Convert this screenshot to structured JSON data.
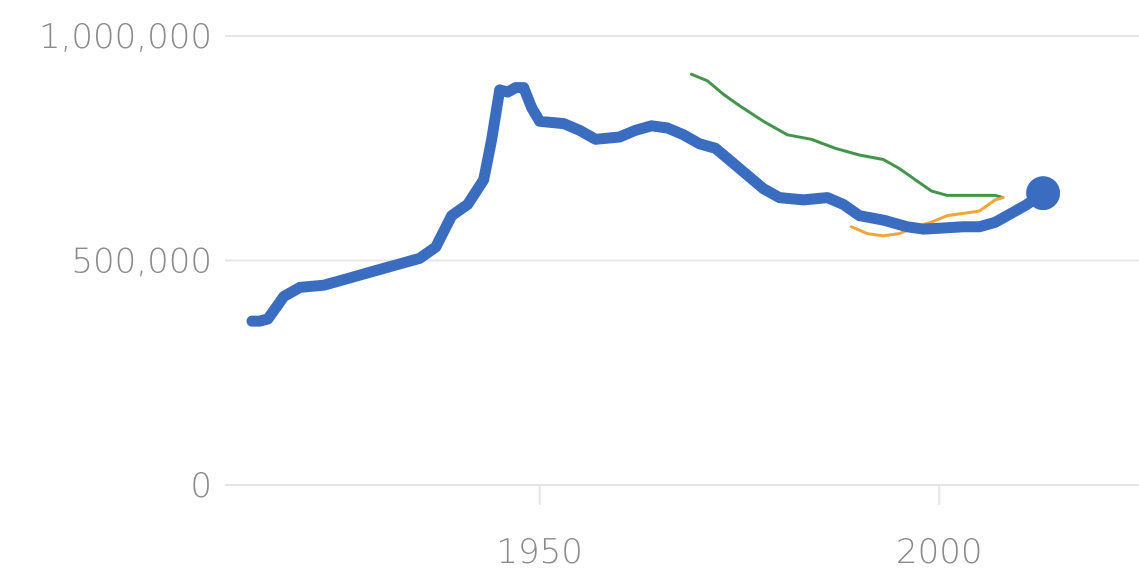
{
  "chart_data": {
    "type": "line",
    "title": "",
    "xlabel": "",
    "ylabel": "",
    "xlim": [
      1910,
      2025
    ],
    "ylim": [
      0,
      1000000
    ],
    "grid": true,
    "legend": "none",
    "y_ticks": [
      {
        "value": 0,
        "label": "0"
      },
      {
        "value": 500000,
        "label": "500,000"
      },
      {
        "value": 1000000,
        "label": "1,000,000"
      }
    ],
    "x_ticks": [
      {
        "value": 1950,
        "label": "1950"
      },
      {
        "value": 2000,
        "label": "2000"
      }
    ],
    "series": [
      {
        "color": "#3a6cc0",
        "end_marker": true,
        "points": [
          [
            1914,
            365000
          ],
          [
            1915,
            365000
          ],
          [
            1916,
            370000
          ],
          [
            1918,
            420000
          ],
          [
            1920,
            440000
          ],
          [
            1923,
            445000
          ],
          [
            1926,
            460000
          ],
          [
            1929,
            475000
          ],
          [
            1932,
            490000
          ],
          [
            1935,
            505000
          ],
          [
            1937,
            530000
          ],
          [
            1939,
            600000
          ],
          [
            1941,
            625000
          ],
          [
            1943,
            680000
          ],
          [
            1944,
            770000
          ],
          [
            1945,
            880000
          ],
          [
            1946,
            875000
          ],
          [
            1947,
            885000
          ],
          [
            1948,
            885000
          ],
          [
            1949,
            840000
          ],
          [
            1950,
            810000
          ],
          [
            1953,
            805000
          ],
          [
            1955,
            790000
          ],
          [
            1957,
            770000
          ],
          [
            1960,
            775000
          ],
          [
            1962,
            790000
          ],
          [
            1964,
            800000
          ],
          [
            1966,
            795000
          ],
          [
            1968,
            780000
          ],
          [
            1970,
            760000
          ],
          [
            1972,
            750000
          ],
          [
            1974,
            720000
          ],
          [
            1976,
            690000
          ],
          [
            1978,
            660000
          ],
          [
            1980,
            640000
          ],
          [
            1983,
            635000
          ],
          [
            1986,
            640000
          ],
          [
            1988,
            625000
          ],
          [
            1990,
            600000
          ],
          [
            1993,
            590000
          ],
          [
            1996,
            575000
          ],
          [
            1998,
            570000
          ],
          [
            2000,
            572000
          ],
          [
            2003,
            575000
          ],
          [
            2005,
            575000
          ],
          [
            2007,
            585000
          ],
          [
            2009,
            605000
          ],
          [
            2011,
            625000
          ],
          [
            2013,
            650000
          ]
        ]
      },
      {
        "color": "#45944c",
        "end_marker": false,
        "points": [
          [
            1969,
            915000
          ],
          [
            1971,
            900000
          ],
          [
            1973,
            870000
          ],
          [
            1975,
            845000
          ],
          [
            1978,
            810000
          ],
          [
            1981,
            780000
          ],
          [
            1984,
            770000
          ],
          [
            1987,
            750000
          ],
          [
            1990,
            735000
          ],
          [
            1993,
            725000
          ],
          [
            1995,
            705000
          ],
          [
            1997,
            680000
          ],
          [
            1999,
            655000
          ],
          [
            2001,
            645000
          ],
          [
            2004,
            645000
          ],
          [
            2007,
            645000
          ],
          [
            2008,
            640000
          ]
        ]
      },
      {
        "color": "#f0a63a",
        "end_marker": false,
        "points": [
          [
            1989,
            575000
          ],
          [
            1991,
            560000
          ],
          [
            1993,
            555000
          ],
          [
            1995,
            560000
          ],
          [
            1997,
            575000
          ],
          [
            1999,
            585000
          ],
          [
            2001,
            600000
          ],
          [
            2003,
            605000
          ],
          [
            2005,
            610000
          ],
          [
            2007,
            635000
          ],
          [
            2008,
            640000
          ]
        ]
      }
    ]
  }
}
